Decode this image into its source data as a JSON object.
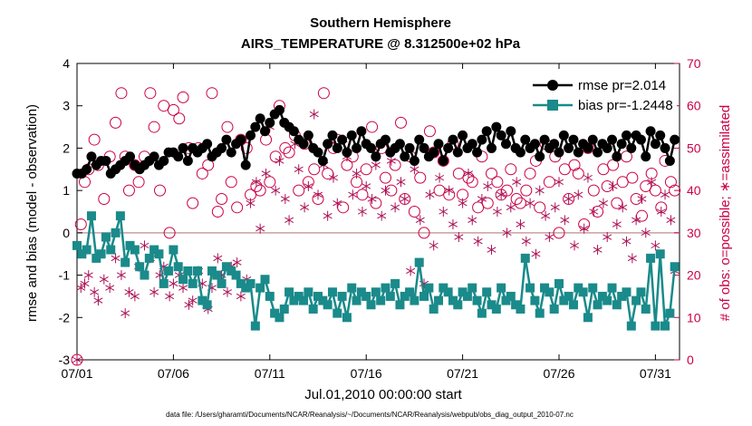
{
  "chart_data": {
    "type": "line",
    "title": "Southern Hemisphere",
    "subtitle": "AIRS_TEMPERATURE @ 8.312500e+02 hPa",
    "xlabel": "Jul.01,2010 00:00:00 start",
    "ylabel": "rmse and bias (model - observation)",
    "y2label": "# of obs: o=possible; ∗=assimilated",
    "xlim": [
      0,
      31.25
    ],
    "ylim": [
      -3,
      4
    ],
    "y2lim": [
      0,
      70
    ],
    "xticks": [
      0,
      5,
      10,
      15,
      20,
      25,
      30
    ],
    "xtick_labels": [
      "07/01",
      "07/06",
      "07/11",
      "07/16",
      "07/21",
      "07/26",
      "07/31"
    ],
    "yticks": [
      -3,
      -2,
      -1,
      0,
      1,
      2,
      3,
      4
    ],
    "y2ticks": [
      0,
      10,
      20,
      30,
      40,
      50,
      60,
      70
    ],
    "legend_position": "top-right",
    "series": [
      {
        "name": "rmse pr=2.014",
        "axis": "left",
        "color": "#000000",
        "marker": "circle",
        "x": [
          0.0,
          0.25,
          0.5,
          0.75,
          1.0,
          1.25,
          1.5,
          1.75,
          2.0,
          2.25,
          2.5,
          2.75,
          3.0,
          3.25,
          3.5,
          3.75,
          4.0,
          4.25,
          4.5,
          4.75,
          5.0,
          5.25,
          5.5,
          5.75,
          6.0,
          6.25,
          6.5,
          6.75,
          7.0,
          7.25,
          7.5,
          7.75,
          8.0,
          8.25,
          8.5,
          8.75,
          9.0,
          9.25,
          9.5,
          9.75,
          10.0,
          10.25,
          10.5,
          10.75,
          11.0,
          11.25,
          11.5,
          11.75,
          12.0,
          12.25,
          12.5,
          12.75,
          13.0,
          13.25,
          13.5,
          13.75,
          14.0,
          14.25,
          14.5,
          14.75,
          15.0,
          15.25,
          15.5,
          15.75,
          16.0,
          16.25,
          16.5,
          16.75,
          17.0,
          17.25,
          17.5,
          17.75,
          18.0,
          18.25,
          18.5,
          18.75,
          19.0,
          19.25,
          19.5,
          19.75,
          20.0,
          20.25,
          20.5,
          20.75,
          21.0,
          21.25,
          21.5,
          21.75,
          22.0,
          22.25,
          22.5,
          22.75,
          23.0,
          23.25,
          23.5,
          23.75,
          24.0,
          24.25,
          24.5,
          24.75,
          25.0,
          25.25,
          25.5,
          25.75,
          26.0,
          26.25,
          26.5,
          26.75,
          27.0,
          27.25,
          27.5,
          27.75,
          28.0,
          28.25,
          28.5,
          28.75,
          29.0,
          29.25,
          29.5,
          29.75,
          30.0,
          30.25,
          30.5,
          30.75,
          31.0
        ],
        "y": [
          1.4,
          1.4,
          1.5,
          1.8,
          1.6,
          1.7,
          1.7,
          1.4,
          1.5,
          1.6,
          1.7,
          1.8,
          1.6,
          1.5,
          1.6,
          1.7,
          1.8,
          1.6,
          1.7,
          1.9,
          1.9,
          1.8,
          2.0,
          1.7,
          2.0,
          1.9,
          2.0,
          2.1,
          1.8,
          1.9,
          2.0,
          2.2,
          1.9,
          2.1,
          2.2,
          1.6,
          2.3,
          2.5,
          2.7,
          2.4,
          2.6,
          2.8,
          2.9,
          2.6,
          2.5,
          2.4,
          2.2,
          2.1,
          2.3,
          2.0,
          1.9,
          1.7,
          2.1,
          2.3,
          2.0,
          2.2,
          1.9,
          2.3,
          2.0,
          2.4,
          2.1,
          2.0,
          1.8,
          2.1,
          2.2,
          1.9,
          2.0,
          2.1,
          1.8,
          2.0,
          1.7,
          2.2,
          2.0,
          1.8,
          1.9,
          2.1,
          1.7,
          2.0,
          2.2,
          1.9,
          2.3,
          2.0,
          2.1,
          1.9,
          2.2,
          2.4,
          2.0,
          2.5,
          2.3,
          2.1,
          2.4,
          2.0,
          1.9,
          2.2,
          2.0,
          2.1,
          1.8,
          2.2,
          2.0,
          2.1,
          1.9,
          2.3,
          2.0,
          2.2,
          1.9,
          2.1,
          2.0,
          2.2,
          1.9,
          2.1,
          2.0,
          2.2,
          1.8,
          2.1,
          2.3,
          2.0,
          2.3,
          2.2,
          1.8,
          2.4,
          2.1,
          2.3,
          2.0,
          1.7,
          2.2
        ]
      },
      {
        "name": "bias pr=-1.2448",
        "axis": "left",
        "color": "#1a8a8a",
        "marker": "square",
        "x": [
          0.0,
          0.25,
          0.5,
          0.75,
          1.0,
          1.25,
          1.5,
          1.75,
          2.0,
          2.25,
          2.5,
          2.75,
          3.0,
          3.25,
          3.5,
          3.75,
          4.0,
          4.25,
          4.5,
          4.75,
          5.0,
          5.25,
          5.5,
          5.75,
          6.0,
          6.25,
          6.5,
          6.75,
          7.0,
          7.25,
          7.5,
          7.75,
          8.0,
          8.25,
          8.5,
          8.75,
          9.0,
          9.25,
          9.5,
          9.75,
          10.0,
          10.25,
          10.5,
          10.75,
          11.0,
          11.25,
          11.5,
          11.75,
          12.0,
          12.25,
          12.5,
          12.75,
          13.0,
          13.25,
          13.5,
          13.75,
          14.0,
          14.25,
          14.5,
          14.75,
          15.0,
          15.25,
          15.5,
          15.75,
          16.0,
          16.25,
          16.5,
          16.75,
          17.0,
          17.25,
          17.5,
          17.75,
          18.0,
          18.25,
          18.5,
          18.75,
          19.0,
          19.25,
          19.5,
          19.75,
          20.0,
          20.25,
          20.5,
          20.75,
          21.0,
          21.25,
          21.5,
          21.75,
          22.0,
          22.25,
          22.5,
          22.75,
          23.0,
          23.25,
          23.5,
          23.75,
          24.0,
          24.25,
          24.5,
          24.75,
          25.0,
          25.25,
          25.5,
          25.75,
          26.0,
          26.25,
          26.5,
          26.75,
          27.0,
          27.25,
          27.5,
          27.75,
          28.0,
          28.25,
          28.5,
          28.75,
          29.0,
          29.25,
          29.5,
          29.75,
          30.0,
          30.25,
          30.5,
          30.75,
          31.0
        ],
        "y": [
          -0.3,
          -0.5,
          -0.4,
          0.4,
          -0.6,
          -0.5,
          -0.1,
          -0.4,
          0.0,
          0.4,
          -0.7,
          -0.3,
          -0.4,
          -0.8,
          -1.0,
          -0.6,
          -0.4,
          -0.5,
          -1.2,
          -0.9,
          -0.4,
          -0.8,
          -1.1,
          -0.9,
          -1.2,
          -0.9,
          -1.6,
          -1.7,
          -0.9,
          -1.0,
          -1.2,
          -0.8,
          -0.9,
          -1.0,
          -1.2,
          -1.3,
          -1.2,
          -2.2,
          -1.3,
          -1.1,
          -1.5,
          -1.9,
          -2.0,
          -1.8,
          -1.4,
          -1.6,
          -1.5,
          -1.6,
          -1.4,
          -1.8,
          -1.5,
          -1.6,
          -1.7,
          -1.4,
          -1.9,
          -1.5,
          -2.0,
          -1.3,
          -1.6,
          -1.4,
          -1.5,
          -1.7,
          -1.4,
          -1.6,
          -1.3,
          -1.5,
          -1.2,
          -1.7,
          -1.5,
          -1.4,
          -1.6,
          -0.7,
          -1.5,
          -1.3,
          -1.8,
          -1.6,
          -1.3,
          -1.4,
          -1.6,
          -1.7,
          -1.4,
          -1.5,
          -1.3,
          -1.6,
          -1.9,
          -1.4,
          -1.7,
          -1.8,
          -1.3,
          -1.6,
          -1.5,
          -1.7,
          -1.8,
          -0.6,
          -1.3,
          -1.6,
          -1.9,
          -1.3,
          -1.4,
          -1.8,
          -1.2,
          -1.6,
          -1.5,
          -1.7,
          -1.3,
          -1.4,
          -2.0,
          -1.3,
          -1.7,
          -1.5,
          -1.6,
          -1.3,
          -1.7,
          -1.5,
          -1.4,
          -2.2,
          -1.6,
          -1.4,
          -1.8,
          -0.6,
          -2.2,
          -0.5,
          -2.2,
          -1.9,
          -0.8
        ]
      },
      {
        "name": "possible",
        "axis": "right",
        "color": "#cc0044",
        "marker": "open-circle",
        "x": [
          0.0,
          0.2,
          0.4,
          0.6,
          0.9,
          1.1,
          1.4,
          1.7,
          2.0,
          2.3,
          2.5,
          2.7,
          3.0,
          3.2,
          3.5,
          3.8,
          4.0,
          4.3,
          4.5,
          4.8,
          5.0,
          5.3,
          5.5,
          5.8,
          6.0,
          6.3,
          6.5,
          6.8,
          7.0,
          7.3,
          7.5,
          7.8,
          8.0,
          8.3,
          8.5,
          8.8,
          9.0,
          9.3,
          9.5,
          9.8,
          10.0,
          10.3,
          10.5,
          10.8,
          11.0,
          11.3,
          11.5,
          11.8,
          12.0,
          12.3,
          12.5,
          12.8,
          13.0,
          13.3,
          13.5,
          13.8,
          14.0,
          14.3,
          14.5,
          14.8,
          15.0,
          15.3,
          15.5,
          15.8,
          16.0,
          16.3,
          16.5,
          16.8,
          17.0,
          17.3,
          17.5,
          17.8,
          18.0,
          18.3,
          18.5,
          18.8,
          19.0,
          19.3,
          19.5,
          19.8,
          20.0,
          20.3,
          20.5,
          20.8,
          21.0,
          21.3,
          21.5,
          21.8,
          22.0,
          22.3,
          22.5,
          22.8,
          23.0,
          23.3,
          23.5,
          23.8,
          24.0,
          24.3,
          24.5,
          24.8,
          25.0,
          25.3,
          25.5,
          25.8,
          26.0,
          26.3,
          26.5,
          26.8,
          27.0,
          27.3,
          27.5,
          27.8,
          28.0,
          28.3,
          28.5,
          28.8,
          29.0,
          29.3,
          29.5,
          29.8,
          30.0,
          30.3,
          30.5,
          30.8,
          31.0
        ],
        "y": [
          0,
          32,
          42,
          45,
          52,
          46,
          38,
          48,
          56,
          63,
          48,
          40,
          46,
          42,
          48,
          63,
          55,
          40,
          60,
          30,
          59,
          57,
          62,
          50,
          37,
          50,
          44,
          46,
          63,
          35,
          38,
          55,
          42,
          36,
          52,
          50,
          39,
          41,
          40,
          52,
          42,
          48,
          60,
          50,
          49,
          53,
          40,
          51,
          42,
          45,
          38,
          63,
          44,
          50,
          52,
          36,
          46,
          48,
          42,
          39,
          45,
          55,
          37,
          50,
          43,
          40,
          46,
          56,
          38,
          48,
          35,
          43,
          30,
          54,
          49,
          40,
          47,
          39,
          51,
          44,
          39,
          43,
          42,
          36,
          48,
          37,
          44,
          42,
          39,
          40,
          45,
          38,
          37,
          40,
          44,
          47,
          36,
          51,
          42,
          48,
          30,
          45,
          38,
          46,
          44,
          32,
          50,
          40,
          35,
          45,
          41,
          46,
          37,
          42,
          48,
          43,
          38,
          34,
          41,
          44,
          40,
          36,
          47,
          42,
          40
        ]
      },
      {
        "name": "assimilated",
        "axis": "right",
        "color": "#aa1155",
        "marker": "asterisk",
        "x": [
          0.0,
          0.2,
          0.4,
          0.6,
          0.9,
          1.1,
          1.4,
          1.7,
          2.0,
          2.3,
          2.5,
          2.7,
          3.0,
          3.2,
          3.5,
          3.8,
          4.0,
          4.3,
          4.5,
          4.8,
          5.0,
          5.3,
          5.5,
          5.8,
          6.0,
          6.3,
          6.5,
          6.8,
          7.0,
          7.3,
          7.5,
          7.8,
          8.0,
          8.3,
          8.5,
          8.8,
          9.0,
          9.3,
          9.5,
          9.8,
          10.0,
          10.3,
          10.5,
          10.8,
          11.0,
          11.3,
          11.5,
          11.8,
          12.0,
          12.3,
          12.5,
          12.8,
          13.0,
          13.3,
          13.5,
          13.8,
          14.0,
          14.3,
          14.5,
          14.8,
          15.0,
          15.3,
          15.5,
          15.8,
          16.0,
          16.3,
          16.5,
          16.8,
          17.0,
          17.3,
          17.5,
          17.8,
          18.0,
          18.3,
          18.5,
          18.8,
          19.0,
          19.3,
          19.5,
          19.8,
          20.0,
          20.3,
          20.5,
          20.8,
          21.0,
          21.3,
          21.5,
          21.8,
          22.0,
          22.3,
          22.5,
          22.8,
          23.0,
          23.3,
          23.5,
          23.8,
          24.0,
          24.3,
          24.5,
          24.8,
          25.0,
          25.3,
          25.5,
          25.8,
          26.0,
          26.3,
          26.5,
          26.8,
          27.0,
          27.3,
          27.5,
          27.8,
          28.0,
          28.3,
          28.5,
          28.8,
          29.0,
          29.3,
          29.5,
          29.8,
          30.0,
          30.3,
          30.5,
          30.8,
          31.0
        ],
        "y": [
          0,
          17,
          18,
          20,
          16,
          14,
          19,
          17,
          24,
          20,
          11,
          16,
          15,
          22,
          27,
          24,
          16,
          20,
          22,
          15,
          18,
          20,
          17,
          13,
          14,
          21,
          18,
          12,
          17,
          24,
          20,
          16,
          22,
          23,
          15,
          19,
          37,
          42,
          31,
          44,
          55,
          40,
          47,
          38,
          33,
          51,
          45,
          36,
          41,
          58,
          39,
          46,
          34,
          43,
          37,
          52,
          48,
          39,
          44,
          35,
          41,
          38,
          46,
          34,
          40,
          47,
          36,
          42,
          38,
          21,
          45,
          33,
          18,
          39,
          27,
          43,
          35,
          40,
          32,
          29,
          37,
          44,
          33,
          28,
          38,
          41,
          26,
          35,
          39,
          30,
          36,
          42,
          32,
          28,
          37,
          25,
          40,
          34,
          29,
          36,
          42,
          33,
          38,
          27,
          39,
          31,
          43,
          35,
          26,
          37,
          29,
          41,
          32,
          36,
          28,
          24,
          33,
          38,
          30,
          42,
          27,
          35,
          39,
          33,
          21
        ]
      }
    ],
    "legend": [
      {
        "label": "rmse pr=2.014"
      },
      {
        "label": "bias pr=-1.2448"
      }
    ],
    "footnote": "data file: /Users/gharamti/Documents/NCAR/Reanalysis/~/Documents/NCAR/Reanalysis/webpub/obs_diag_output_2010-07.nc"
  }
}
